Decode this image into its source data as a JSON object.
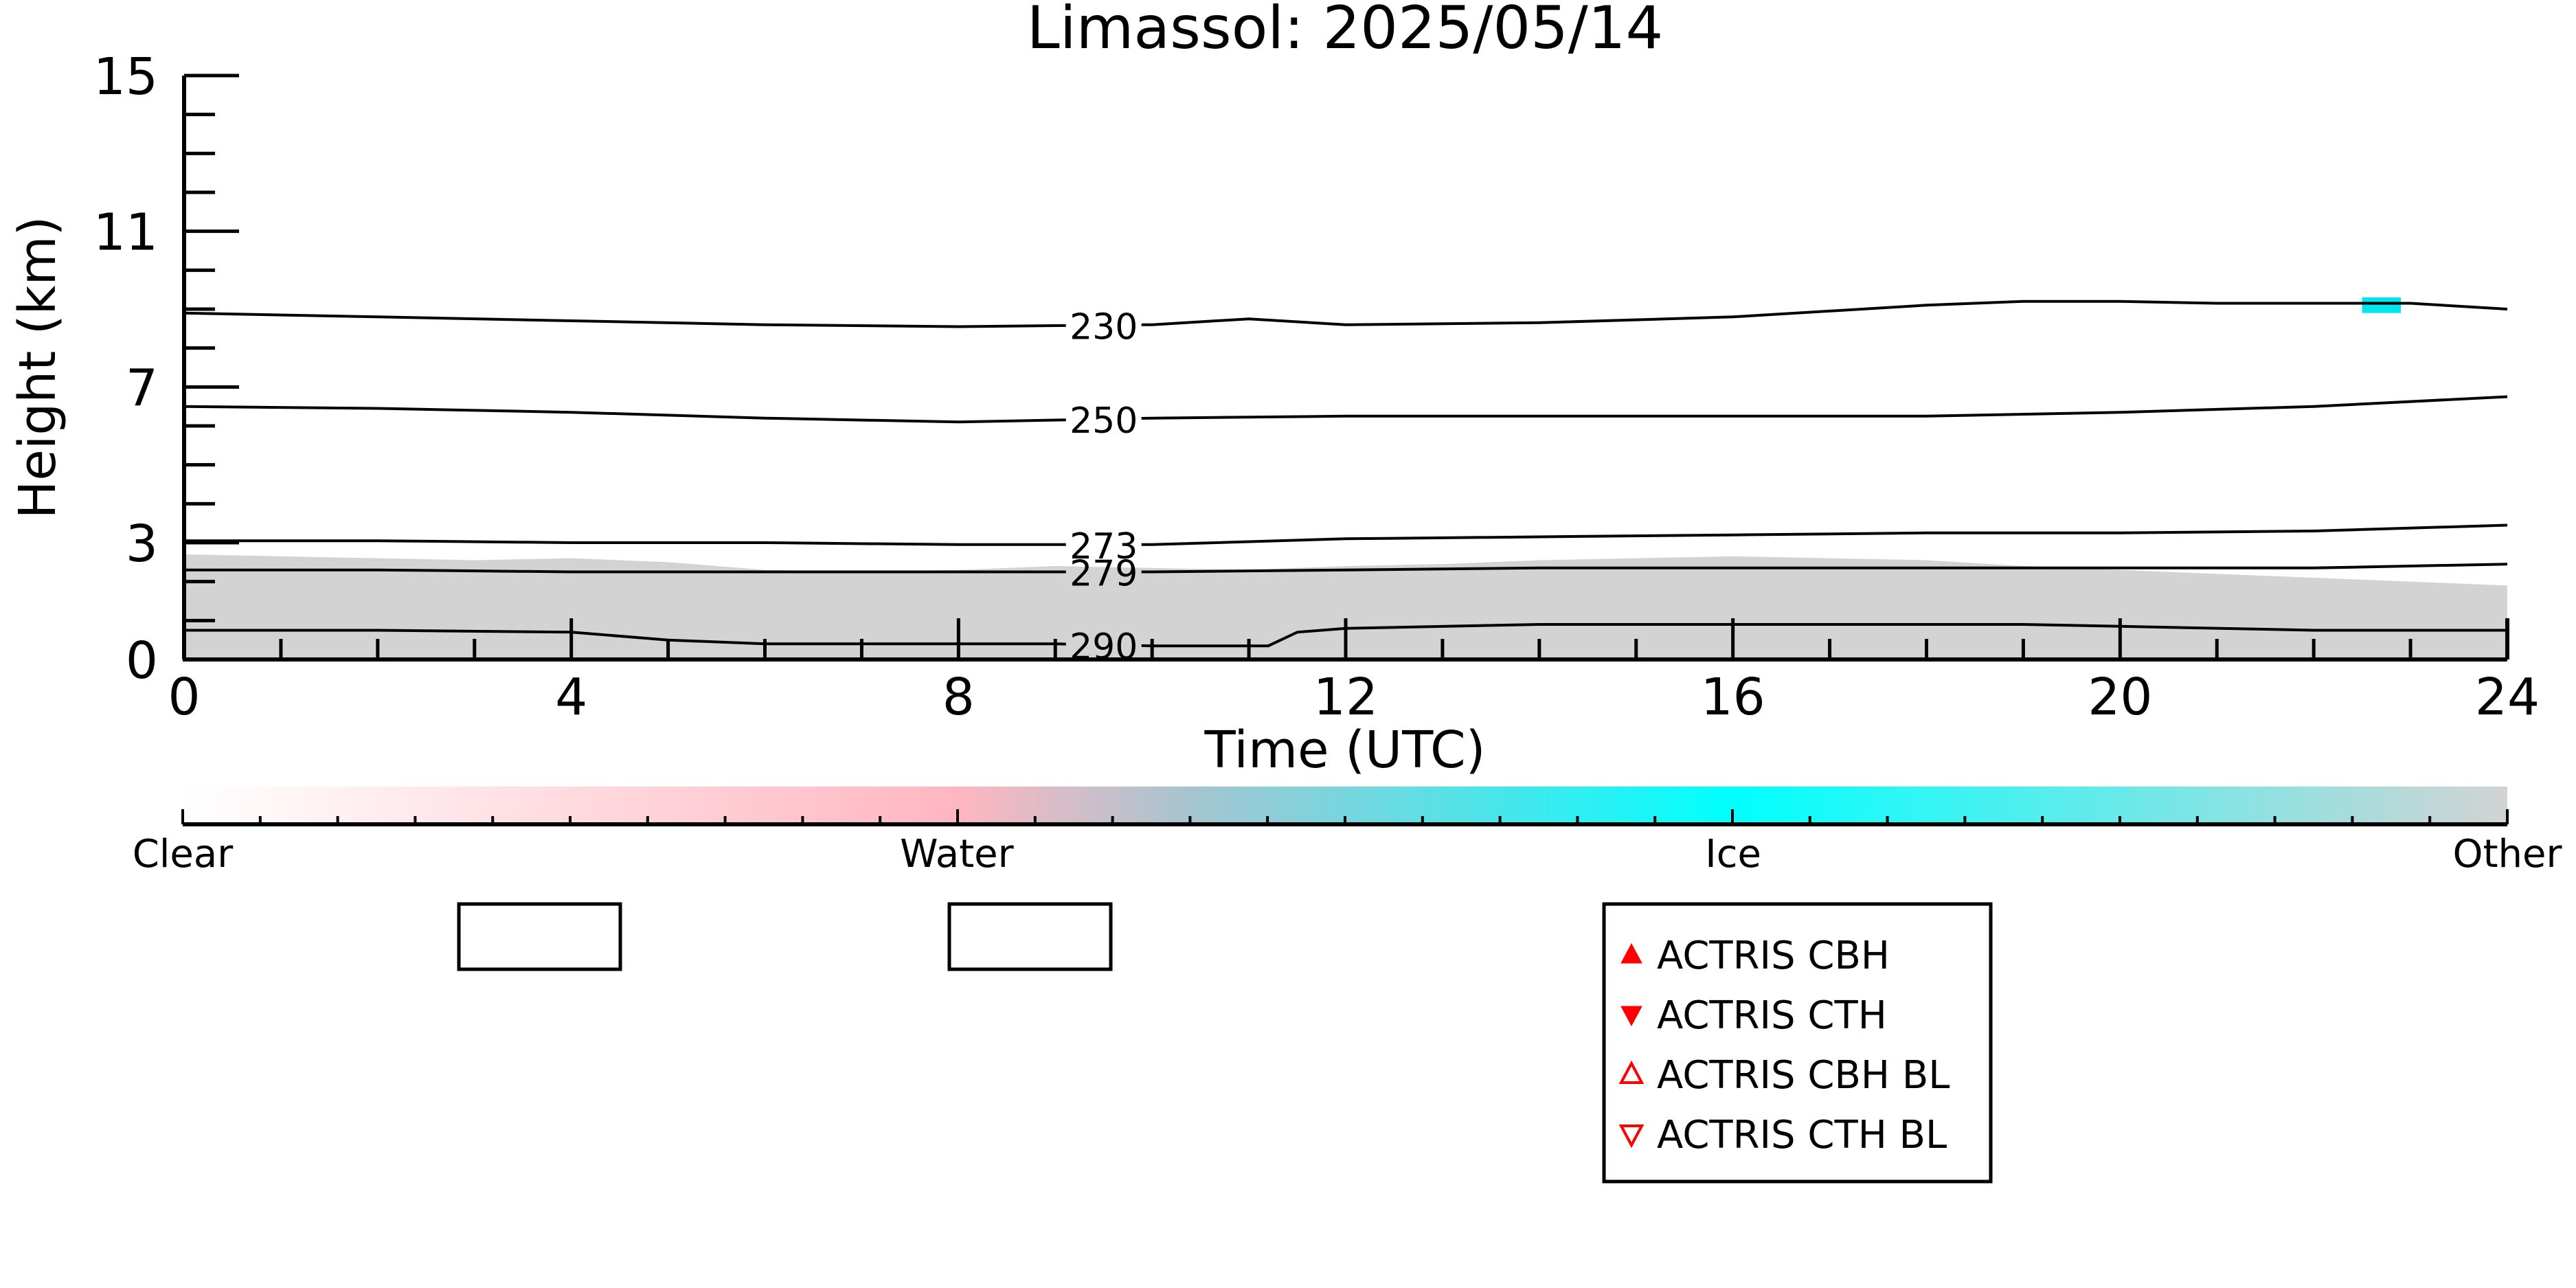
{
  "chart_data": {
    "type": "heatmap",
    "title": "Limassol: 2025/05/14",
    "xlabel": "Time (UTC)",
    "ylabel": "Height (km)",
    "xlim": [
      0,
      24
    ],
    "ylim": [
      0,
      15
    ],
    "x_ticks": [
      0,
      4,
      8,
      12,
      16,
      20,
      24
    ],
    "y_ticks": [
      0,
      3,
      7,
      11,
      15
    ],
    "colorbar": {
      "labels": [
        "Clear",
        "Water",
        "Ice",
        "Other"
      ],
      "positions": [
        0,
        0.333,
        0.667,
        1
      ],
      "stops": [
        {
          "pos": 0,
          "color": "#ffffff"
        },
        {
          "pos": 0.333,
          "color": "#ffb6c1"
        },
        {
          "pos": 0.43,
          "color": "#a9c4cf"
        },
        {
          "pos": 0.667,
          "color": "#00ffff"
        },
        {
          "pos": 1,
          "color": "#d3d3d3"
        }
      ]
    },
    "field_colors": {
      "other": "#d3d3d3",
      "ice": "#00e5ee",
      "water": "#ffb6c1"
    },
    "other_region": [
      [
        0,
        2.7
      ],
      [
        1,
        2.65
      ],
      [
        2,
        2.6
      ],
      [
        3,
        2.55
      ],
      [
        4,
        2.6
      ],
      [
        5,
        2.5
      ],
      [
        6,
        2.3
      ],
      [
        7,
        2.25
      ],
      [
        8,
        2.3
      ],
      [
        9,
        2.4
      ],
      [
        10,
        2.35
      ],
      [
        11,
        2.3
      ],
      [
        12,
        2.4
      ],
      [
        13,
        2.45
      ],
      [
        14,
        2.55
      ],
      [
        15,
        2.6
      ],
      [
        16,
        2.65
      ],
      [
        17,
        2.6
      ],
      [
        18,
        2.55
      ],
      [
        19,
        2.4
      ],
      [
        20,
        2.3
      ],
      [
        21,
        2.2
      ],
      [
        22,
        2.1
      ],
      [
        23,
        2.0
      ],
      [
        24,
        1.9
      ]
    ],
    "ice_patch": {
      "x": [
        22.5,
        22.9
      ],
      "y": [
        8.9,
        9.3
      ]
    },
    "contours": [
      {
        "label": "230",
        "label_x": 9.5,
        "points": [
          [
            0,
            8.9
          ],
          [
            2,
            8.8
          ],
          [
            4,
            8.7
          ],
          [
            6,
            8.6
          ],
          [
            8,
            8.55
          ],
          [
            10,
            8.6
          ],
          [
            11,
            8.75
          ],
          [
            12,
            8.6
          ],
          [
            14,
            8.65
          ],
          [
            16,
            8.8
          ],
          [
            18,
            9.1
          ],
          [
            19,
            9.2
          ],
          [
            20,
            9.2
          ],
          [
            21,
            9.15
          ],
          [
            22,
            9.15
          ],
          [
            23,
            9.15
          ],
          [
            24,
            9.0
          ]
        ]
      },
      {
        "label": "250",
        "label_x": 9.5,
        "points": [
          [
            0,
            6.5
          ],
          [
            2,
            6.45
          ],
          [
            4,
            6.35
          ],
          [
            6,
            6.2
          ],
          [
            8,
            6.1
          ],
          [
            10,
            6.2
          ],
          [
            12,
            6.25
          ],
          [
            14,
            6.25
          ],
          [
            16,
            6.25
          ],
          [
            18,
            6.25
          ],
          [
            20,
            6.35
          ],
          [
            22,
            6.5
          ],
          [
            24,
            6.75
          ]
        ]
      },
      {
        "label": "273",
        "label_x": 9.5,
        "points": [
          [
            0,
            3.05
          ],
          [
            2,
            3.05
          ],
          [
            4,
            3.0
          ],
          [
            6,
            3.0
          ],
          [
            8,
            2.95
          ],
          [
            9,
            2.95
          ],
          [
            10,
            2.95
          ],
          [
            12,
            3.1
          ],
          [
            14,
            3.15
          ],
          [
            16,
            3.2
          ],
          [
            18,
            3.25
          ],
          [
            20,
            3.25
          ],
          [
            22,
            3.3
          ],
          [
            24,
            3.45
          ]
        ]
      },
      {
        "label": "279",
        "label_x": 9.5,
        "points": [
          [
            0,
            2.3
          ],
          [
            2,
            2.3
          ],
          [
            4,
            2.25
          ],
          [
            6,
            2.25
          ],
          [
            8,
            2.25
          ],
          [
            9,
            2.25
          ],
          [
            10,
            2.25
          ],
          [
            12,
            2.3
          ],
          [
            14,
            2.35
          ],
          [
            16,
            2.35
          ],
          [
            18,
            2.35
          ],
          [
            20,
            2.35
          ],
          [
            22,
            2.35
          ],
          [
            24,
            2.45
          ]
        ]
      },
      {
        "label": "290",
        "label_x": 9.5,
        "points": [
          [
            0,
            0.75
          ],
          [
            2,
            0.75
          ],
          [
            4,
            0.7
          ],
          [
            5,
            0.5
          ],
          [
            6,
            0.4
          ],
          [
            8,
            0.4
          ],
          [
            9,
            0.4
          ],
          [
            10,
            0.35
          ],
          [
            11.2,
            0.35
          ],
          [
            11.5,
            0.7
          ],
          [
            12,
            0.8
          ],
          [
            14,
            0.9
          ],
          [
            16,
            0.9
          ],
          [
            18,
            0.9
          ],
          [
            19,
            0.9
          ],
          [
            20,
            0.85
          ],
          [
            22,
            0.75
          ],
          [
            24,
            0.75
          ]
        ]
      }
    ],
    "legend": [
      "ACTRIS CBH",
      "ACTRIS CTH",
      "ACTRIS CBH BL",
      "ACTRIS CTH BL"
    ],
    "legend_color": "#ff0000"
  }
}
